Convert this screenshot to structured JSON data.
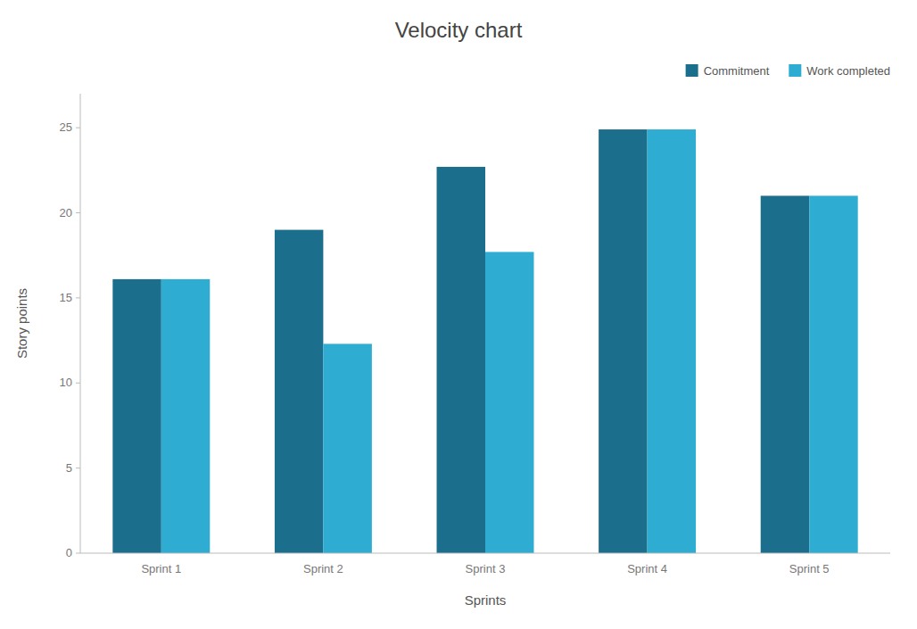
{
  "chart_data": {
    "type": "bar",
    "title": "Velocity chart",
    "categories": [
      "Sprint 1",
      "Sprint 2",
      "Sprint 3",
      "Sprint 4",
      "Sprint 5"
    ],
    "series": [
      {
        "name": "Commitment",
        "color": "#1c6f8c",
        "values": [
          16.1,
          19.0,
          22.7,
          24.9,
          21.0
        ]
      },
      {
        "name": "Work completed",
        "color": "#2eacd1",
        "values": [
          16.1,
          12.3,
          17.7,
          24.9,
          21.0
        ]
      }
    ],
    "xlabel": "Sprints",
    "ylabel": "Story points",
    "ylim": [
      0,
      27
    ],
    "yticks": [
      0,
      5,
      10,
      15,
      20,
      25
    ],
    "grid": false,
    "legend": "top-right"
  }
}
